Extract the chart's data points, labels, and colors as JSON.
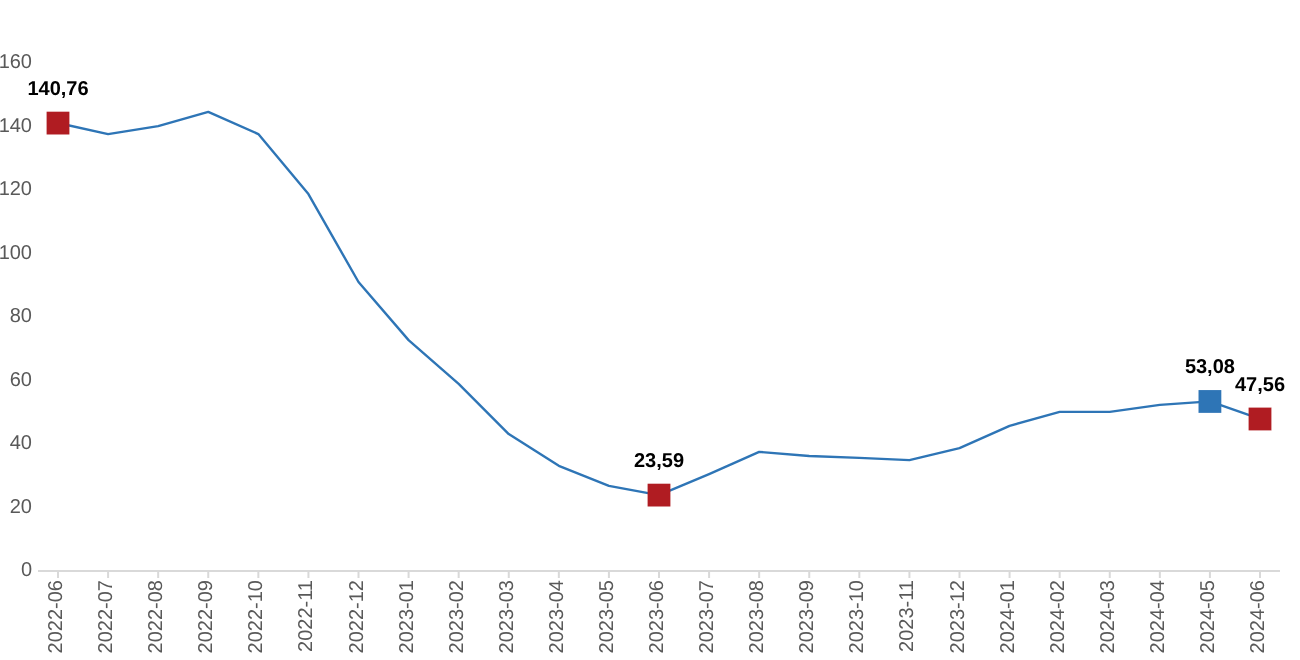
{
  "chart_data": {
    "type": "line",
    "categories": [
      "2022-06",
      "2022-07",
      "2022-08",
      "2022-09",
      "2022-10",
      "2022-11",
      "2022-12",
      "2023-01",
      "2023-02",
      "2023-03",
      "2023-04",
      "2023-05",
      "2023-06",
      "2023-07",
      "2023-08",
      "2023-09",
      "2023-10",
      "2023-11",
      "2023-12",
      "2024-01",
      "2024-02",
      "2024-03",
      "2024-04",
      "2024-05",
      "2024-06"
    ],
    "ylim": [
      0,
      160
    ],
    "yticks": [
      0,
      20,
      40,
      60,
      80,
      100,
      120,
      140,
      160
    ],
    "grid": false,
    "series": [
      {
        "color": "#2e75b6",
        "marker": "none",
        "values": [
          140.8,
          137.3,
          139.8,
          144.3,
          137.3,
          118.4,
          90.7,
          72.4,
          58.6,
          42.8,
          32.8,
          26.5,
          23.6,
          30.2,
          37.2,
          35.9,
          35.3,
          34.6,
          38.4,
          45.4,
          49.8,
          49.8,
          52,
          53.1,
          47.6
        ]
      },
      {
        "type": "scatter",
        "color": "#b01c22",
        "marker": "square",
        "values": [
          140.76,
          null,
          null,
          null,
          null,
          null,
          null,
          null,
          null,
          null,
          null,
          null,
          23.59,
          null,
          null,
          null,
          null,
          null,
          null,
          null,
          null,
          null,
          null,
          null,
          47.56
        ],
        "value_labels": [
          "140,76",
          null,
          null,
          null,
          null,
          null,
          null,
          null,
          null,
          null,
          null,
          null,
          "23,59",
          null,
          null,
          null,
          null,
          null,
          null,
          null,
          null,
          null,
          null,
          null,
          "47,56"
        ]
      },
      {
        "type": "scatter",
        "color": "#2e75b6",
        "marker": "square",
        "values": [
          null,
          null,
          null,
          null,
          null,
          null,
          null,
          null,
          null,
          null,
          null,
          null,
          null,
          null,
          null,
          null,
          null,
          null,
          null,
          null,
          null,
          null,
          null,
          53.08,
          null
        ],
        "value_labels": [
          null,
          null,
          null,
          null,
          null,
          null,
          null,
          null,
          null,
          null,
          null,
          null,
          null,
          null,
          null,
          null,
          null,
          null,
          null,
          null,
          null,
          null,
          null,
          "53,08",
          null
        ]
      }
    ]
  }
}
